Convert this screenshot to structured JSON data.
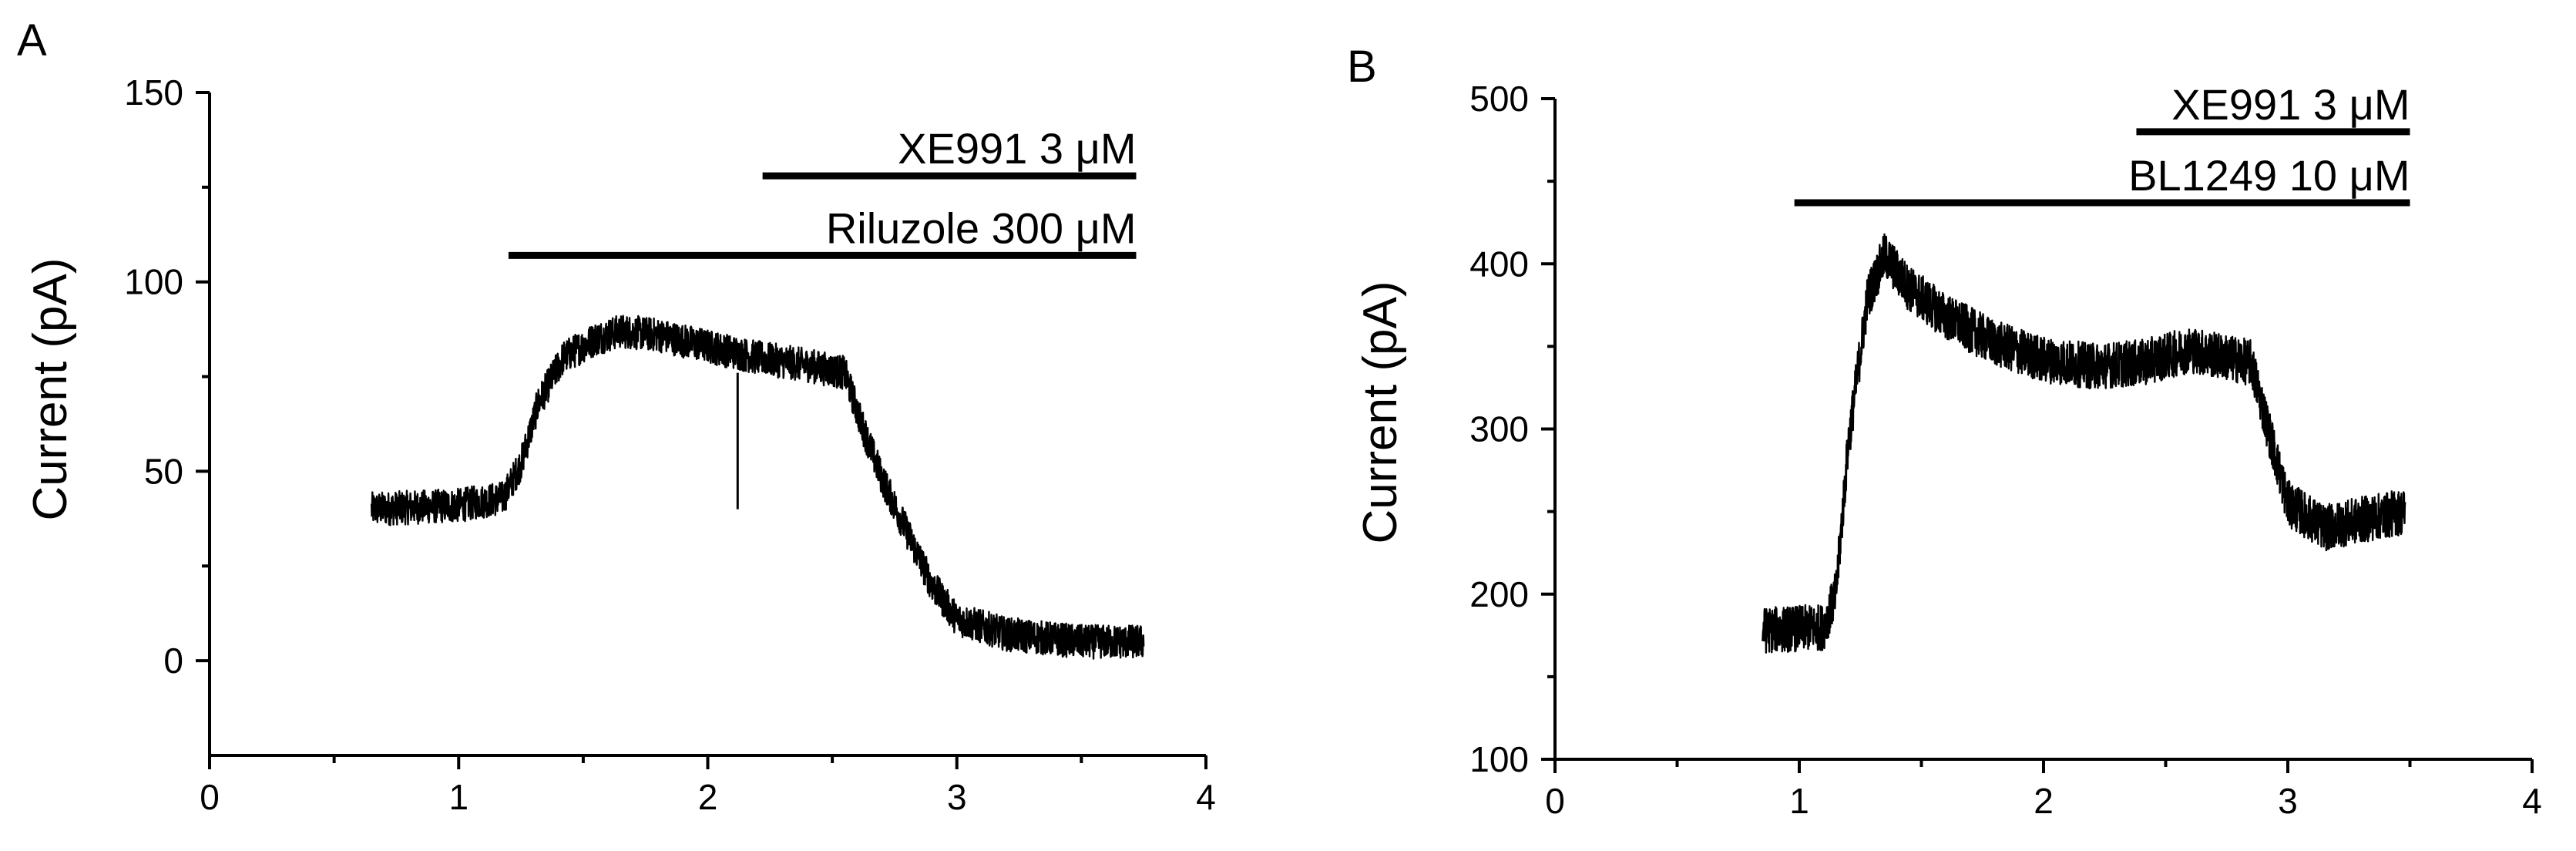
{
  "chart_data": [
    {
      "type": "line",
      "panel_label": "A",
      "title": "",
      "xlabel": "",
      "ylabel": "Current (pA)",
      "xlim": [
        0,
        4
      ],
      "ylim": [
        -25,
        150
      ],
      "xticks": [
        "0",
        "1",
        "2",
        "3",
        "4"
      ],
      "yticks": [
        "0",
        "50",
        "100",
        "150"
      ],
      "grid": false,
      "treatment_bars": [
        {
          "label": "XE991 3 μM",
          "x_start": 2.22,
          "x_end": 3.72,
          "y": 128
        },
        {
          "label": "Riluzole 300 μM",
          "x_start": 1.2,
          "x_end": 3.72,
          "y": 107
        }
      ],
      "series": [
        {
          "x": [
            0.65,
            1.0,
            1.18,
            1.25,
            1.32,
            1.42,
            1.55,
            1.65,
            1.8,
            2.0,
            2.2,
            2.4,
            2.55,
            2.62,
            2.7,
            2.8,
            2.9,
            3.0,
            3.2,
            3.5,
            3.75
          ],
          "y": [
            40,
            41,
            43,
            52,
            68,
            80,
            85,
            87,
            86,
            83,
            80,
            78,
            76,
            62,
            48,
            34,
            20,
            11,
            7,
            5,
            5
          ],
          "noise": 4.5,
          "artifacts": [
            {
              "x": 2.12,
              "from": 76,
              "to": 40
            }
          ]
        }
      ]
    },
    {
      "type": "line",
      "panel_label": "B",
      "title": "",
      "xlabel": "",
      "ylabel": "Current (pA)",
      "xlim": [
        0,
        4
      ],
      "ylim": [
        100,
        500
      ],
      "xticks": [
        "0",
        "1",
        "2",
        "3",
        "4"
      ],
      "yticks": [
        "100",
        "200",
        "300",
        "400",
        "500"
      ],
      "grid": false,
      "treatment_bars": [
        {
          "label": "XE991 3 μM",
          "x_start": 2.38,
          "x_end": 3.5,
          "y": 480
        },
        {
          "label": "BL1249 10 μM",
          "x_start": 0.98,
          "x_end": 3.5,
          "y": 437
        }
      ],
      "series": [
        {
          "x": [
            0.85,
            1.1,
            1.15,
            1.2,
            1.28,
            1.35,
            1.45,
            1.6,
            1.8,
            2.0,
            2.2,
            2.4,
            2.6,
            2.85,
            2.92,
            3.0,
            3.15,
            3.3,
            3.48
          ],
          "y": [
            178,
            180,
            200,
            290,
            380,
            405,
            385,
            368,
            352,
            342,
            338,
            340,
            348,
            340,
            300,
            255,
            240,
            245,
            250
          ],
          "noise": 14,
          "artifacts": []
        }
      ]
    }
  ]
}
